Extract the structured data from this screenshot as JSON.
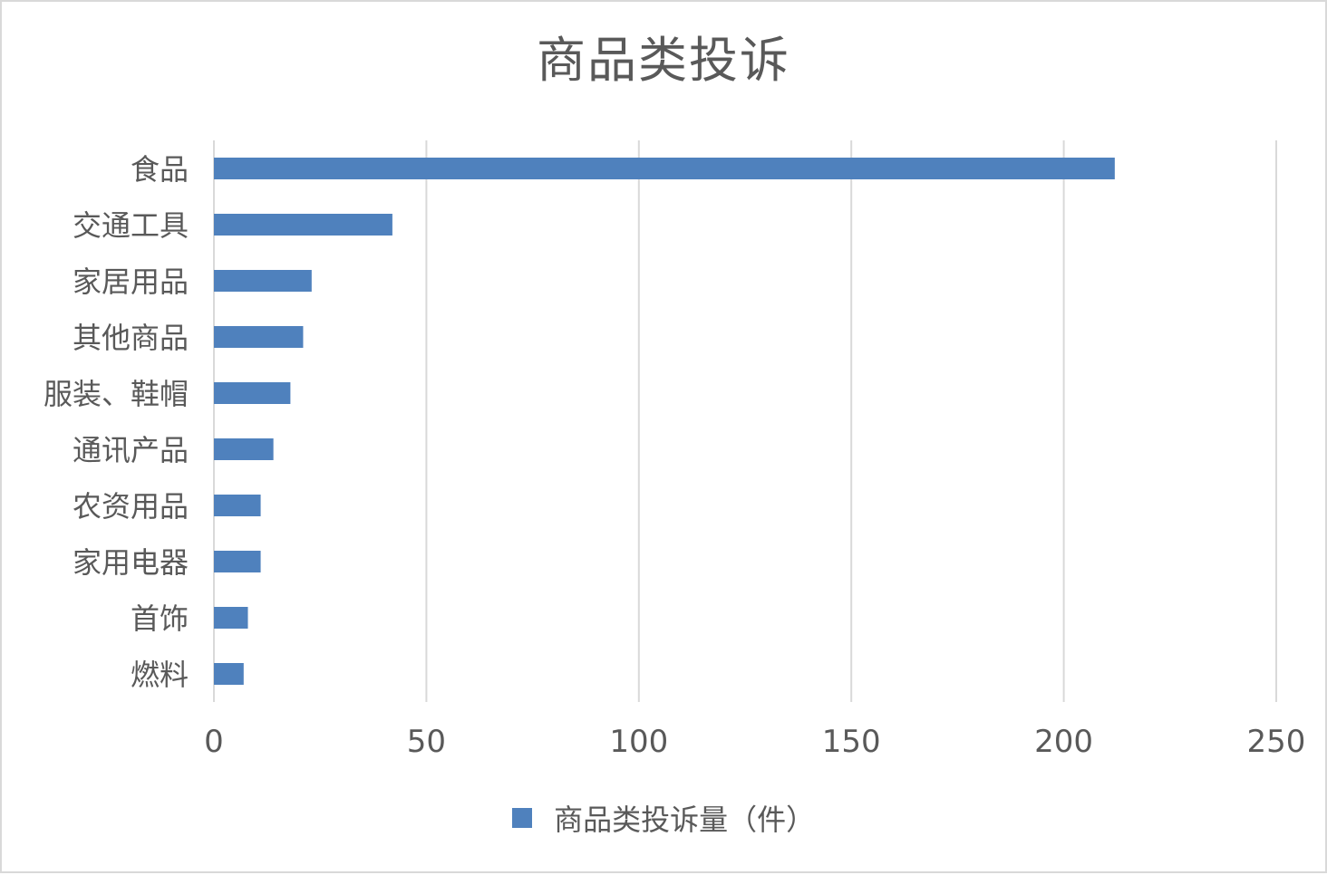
{
  "chart_data": {
    "type": "bar",
    "orientation": "horizontal",
    "title": "商品类投诉",
    "categories": [
      "食品",
      "交通工具",
      "家居用品",
      "其他商品",
      "服装、鞋帽",
      "通讯产品",
      "农资用品",
      "家用电器",
      "首饰",
      "燃料"
    ],
    "series": [
      {
        "name": "商品类投诉量（件）",
        "values": [
          212,
          42,
          23,
          21,
          18,
          14,
          11,
          11,
          8,
          7
        ]
      }
    ],
    "xlim": [
      0,
      250
    ],
    "xticks": [
      0,
      50,
      100,
      150,
      200,
      250
    ],
    "grid": true,
    "legend_position": "bottom",
    "colors": {
      "bar": "#4f81bd",
      "grid": "#d9d9d9",
      "text": "#595959"
    }
  }
}
